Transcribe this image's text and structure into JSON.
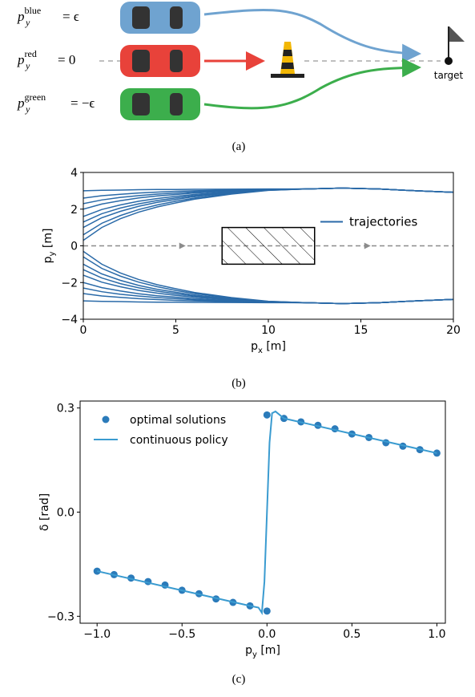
{
  "panel_a": {
    "labels": [
      {
        "base": "p",
        "sub": "y",
        "sup": "blue",
        "rhs": "= ϵ"
      },
      {
        "base": "p",
        "sub": "y",
        "sup": "red",
        "rhs": "= 0"
      },
      {
        "base": "p",
        "sub": "y",
        "sup": "green",
        "rhs": "= −ϵ"
      }
    ],
    "target": "target"
  },
  "captions": [
    "(a)",
    "(b)",
    "(c)"
  ],
  "chart_data": [
    {
      "type": "line",
      "xlabel": [
        "p",
        "x",
        " [m]"
      ],
      "ylabel": [
        "p",
        "y",
        " [m]"
      ],
      "xlim": [
        0,
        20
      ],
      "ylim": [
        -4,
        4
      ],
      "xticks": [
        0,
        5,
        10,
        15,
        20
      ],
      "yticks": [
        {
          "value": -4,
          "label": "−4"
        },
        {
          "value": -2,
          "label": "−2"
        },
        0,
        2,
        4
      ],
      "legend": "center right",
      "color": "#2a6aa8",
      "reference": {
        "y": 0,
        "color": "#8c8c8c"
      },
      "obstacle": {
        "x": [
          7.5,
          12.5
        ],
        "y": [
          -1,
          1
        ]
      },
      "x": [
        0,
        1,
        2,
        3,
        4,
        5,
        6,
        8,
        10,
        12,
        14,
        16,
        18,
        20
      ],
      "series": [
        {
          "name": "trajectories",
          "values": [
            3.0,
            3.03,
            3.04,
            3.06,
            3.07,
            3.07,
            3.08,
            3.09,
            3.1,
            3.1,
            3.15,
            3.1,
            3.0,
            2.92
          ]
        },
        {
          "values": [
            2.6,
            2.73,
            2.81,
            2.88,
            2.93,
            2.97,
            3.0,
            3.05,
            3.09,
            3.1,
            3.15,
            3.1,
            3.0,
            2.92
          ]
        },
        {
          "values": [
            2.3,
            2.5,
            2.64,
            2.74,
            2.82,
            2.88,
            2.94,
            3.02,
            3.08,
            3.1,
            3.15,
            3.1,
            3.0,
            2.92
          ]
        },
        {
          "values": [
            2.0,
            2.28,
            2.46,
            2.61,
            2.72,
            2.8,
            2.88,
            2.99,
            3.07,
            3.1,
            3.15,
            3.1,
            3.0,
            2.92
          ]
        },
        {
          "values": [
            1.6,
            1.98,
            2.23,
            2.43,
            2.58,
            2.7,
            2.8,
            2.95,
            3.06,
            3.1,
            3.15,
            3.1,
            3.0,
            2.92
          ]
        },
        {
          "values": [
            1.3,
            1.75,
            2.06,
            2.29,
            2.47,
            2.61,
            2.74,
            2.92,
            3.05,
            3.1,
            3.15,
            3.1,
            3.0,
            2.92
          ]
        },
        {
          "values": [
            1.0,
            1.53,
            1.88,
            2.16,
            2.37,
            2.53,
            2.68,
            2.89,
            3.04,
            3.1,
            3.15,
            3.1,
            3.0,
            2.92
          ]
        },
        {
          "values": [
            0.6,
            1.23,
            1.65,
            1.98,
            2.23,
            2.43,
            2.6,
            2.85,
            3.03,
            3.1,
            3.15,
            3.1,
            3.0,
            2.92
          ]
        },
        {
          "values": [
            0.3,
            1.0,
            1.48,
            1.84,
            2.12,
            2.34,
            2.54,
            2.82,
            3.02,
            3.1,
            3.15,
            3.1,
            3.0,
            2.92
          ]
        },
        {
          "values": [
            -3.0,
            -3.03,
            -3.04,
            -3.06,
            -3.07,
            -3.07,
            -3.08,
            -3.09,
            -3.1,
            -3.1,
            -3.15,
            -3.1,
            -3.0,
            -2.92
          ]
        },
        {
          "values": [
            -2.6,
            -2.73,
            -2.81,
            -2.88,
            -2.93,
            -2.97,
            -3.0,
            -3.05,
            -3.09,
            -3.1,
            -3.15,
            -3.1,
            -3.0,
            -2.92
          ]
        },
        {
          "values": [
            -2.3,
            -2.5,
            -2.64,
            -2.74,
            -2.82,
            -2.88,
            -2.94,
            -3.02,
            -3.08,
            -3.1,
            -3.15,
            -3.1,
            -3.0,
            -2.92
          ]
        },
        {
          "values": [
            -2.0,
            -2.28,
            -2.46,
            -2.61,
            -2.72,
            -2.8,
            -2.88,
            -2.99,
            -3.07,
            -3.1,
            -3.15,
            -3.1,
            -3.0,
            -2.92
          ]
        },
        {
          "values": [
            -1.6,
            -1.98,
            -2.23,
            -2.43,
            -2.58,
            -2.7,
            -2.8,
            -2.95,
            -3.06,
            -3.1,
            -3.15,
            -3.1,
            -3.0,
            -2.92
          ]
        },
        {
          "values": [
            -1.3,
            -1.75,
            -2.06,
            -2.29,
            -2.47,
            -2.61,
            -2.74,
            -2.92,
            -3.05,
            -3.1,
            -3.15,
            -3.1,
            -3.0,
            -2.92
          ]
        },
        {
          "values": [
            -1.0,
            -1.53,
            -1.88,
            -2.16,
            -2.37,
            -2.53,
            -2.68,
            -2.89,
            -3.04,
            -3.1,
            -3.15,
            -3.1,
            -3.0,
            -2.92
          ]
        },
        {
          "values": [
            -0.6,
            -1.23,
            -1.65,
            -1.98,
            -2.23,
            -2.43,
            -2.6,
            -2.85,
            -3.03,
            -3.1,
            -3.15,
            -3.1,
            -3.0,
            -2.92
          ]
        },
        {
          "values": [
            -0.3,
            -1.0,
            -1.48,
            -1.84,
            -2.12,
            -2.34,
            -2.54,
            -2.82,
            -3.02,
            -3.1,
            -3.15,
            -3.1,
            -3.0,
            -2.92
          ]
        }
      ]
    },
    {
      "type": "combo",
      "xlabel": [
        "p",
        "y",
        " [m]"
      ],
      "ylabel": [
        "δ [rad]"
      ],
      "xlim": [
        -1.1,
        1.05
      ],
      "ylim": [
        -0.32,
        0.32
      ],
      "xticks": [
        {
          "value": -1,
          "label": "−1.0"
        },
        {
          "value": -0.5,
          "label": "−0.5"
        },
        {
          "value": 0,
          "label": "0.0"
        },
        {
          "value": 0.5,
          "label": "0.5"
        },
        {
          "value": 1,
          "label": "1.0"
        }
      ],
      "yticks": [
        {
          "value": -0.3,
          "label": "−0.3"
        },
        {
          "value": 0,
          "label": "0.0"
        },
        0.3
      ],
      "legend": "upper left",
      "series": [
        {
          "name": "optimal solutions",
          "type": "scatter",
          "color": "#2b7bba",
          "x": [
            -1.0,
            -0.9,
            -0.8,
            -0.7,
            -0.6,
            -0.5,
            -0.4,
            -0.3,
            -0.2,
            -0.1,
            0.0,
            0.0,
            0.1,
            0.2,
            0.3,
            0.4,
            0.5,
            0.6,
            0.7,
            0.8,
            0.9,
            1.0
          ],
          "values": [
            -0.17,
            -0.18,
            -0.19,
            -0.2,
            -0.21,
            -0.225,
            -0.235,
            -0.25,
            -0.26,
            -0.27,
            -0.285,
            0.28,
            0.27,
            0.26,
            0.25,
            0.24,
            0.225,
            0.215,
            0.2,
            0.19,
            0.18,
            0.17
          ]
        },
        {
          "name": "continuous policy",
          "type": "line",
          "color": "#3a9bd0",
          "x": [
            -1.0,
            -0.1,
            -0.05,
            -0.03,
            -0.015,
            0.0,
            0.015,
            0.03,
            0.05,
            0.1,
            1.0
          ],
          "values": [
            -0.17,
            -0.27,
            -0.275,
            -0.29,
            -0.2,
            0.0,
            0.2,
            0.285,
            0.29,
            0.27,
            0.17
          ]
        }
      ]
    }
  ]
}
